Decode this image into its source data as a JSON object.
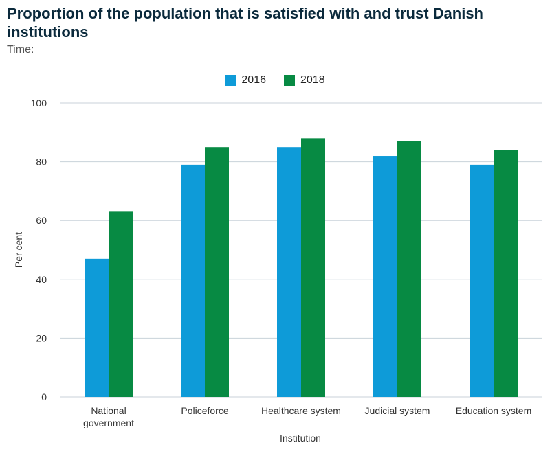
{
  "header": {
    "title": "Proportion of the population that is satisfied with and trust Danish institutions",
    "subtitle": "Time:"
  },
  "colors": {
    "series_2016": "#0e9bd8",
    "series_2018": "#078a43",
    "grid": "#c8d2da"
  },
  "chart_data": {
    "type": "bar",
    "title": "Proportion of the population that is satisfied with and trust Danish institutions",
    "xlabel": "Institution",
    "ylabel": "Per cent",
    "ylim": [
      0,
      100
    ],
    "yticks": [
      0,
      20,
      40,
      60,
      80,
      100
    ],
    "categories": [
      "National government",
      "Policeforce",
      "Healthcare system",
      "Judicial system",
      "Education system"
    ],
    "category_lines": [
      [
        "National",
        "government"
      ],
      [
        "Policeforce"
      ],
      [
        "Healthcare system"
      ],
      [
        "Judicial system"
      ],
      [
        "Education system"
      ]
    ],
    "series": [
      {
        "name": "2016",
        "values": [
          47,
          79,
          85,
          82,
          79
        ]
      },
      {
        "name": "2018",
        "values": [
          63,
          85,
          88,
          87,
          84
        ]
      }
    ],
    "grid": true,
    "legend": "top-center"
  }
}
